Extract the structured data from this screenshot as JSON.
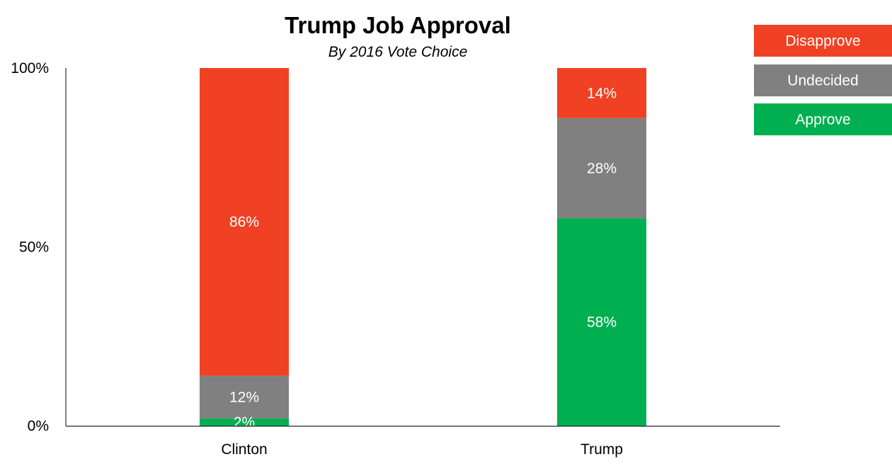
{
  "chart_data": {
    "type": "bar",
    "stacked": true,
    "title": "Trump Job Approval",
    "subtitle": "By 2016 Vote Choice",
    "xlabel": "",
    "ylabel": "",
    "categories": [
      "Clinton",
      "Trump"
    ],
    "ylim": [
      0,
      100
    ],
    "y_ticks": [
      "0%",
      "50%",
      "100%"
    ],
    "y_tick_values": [
      0,
      50,
      100
    ],
    "grid": false,
    "legend_position": "top-right",
    "series": [
      {
        "name": "Approve",
        "values": [
          2,
          58
        ],
        "labels": [
          "2%",
          "58%"
        ],
        "color": "#00b050"
      },
      {
        "name": "Undecided",
        "values": [
          12,
          28
        ],
        "labels": [
          "12%",
          "28%"
        ],
        "color": "#808080"
      },
      {
        "name": "Disapprove",
        "values": [
          86,
          14
        ],
        "labels": [
          "86%",
          "14%"
        ],
        "color": "#f04124"
      }
    ],
    "legend_order": [
      "Disapprove",
      "Undecided",
      "Approve"
    ]
  }
}
